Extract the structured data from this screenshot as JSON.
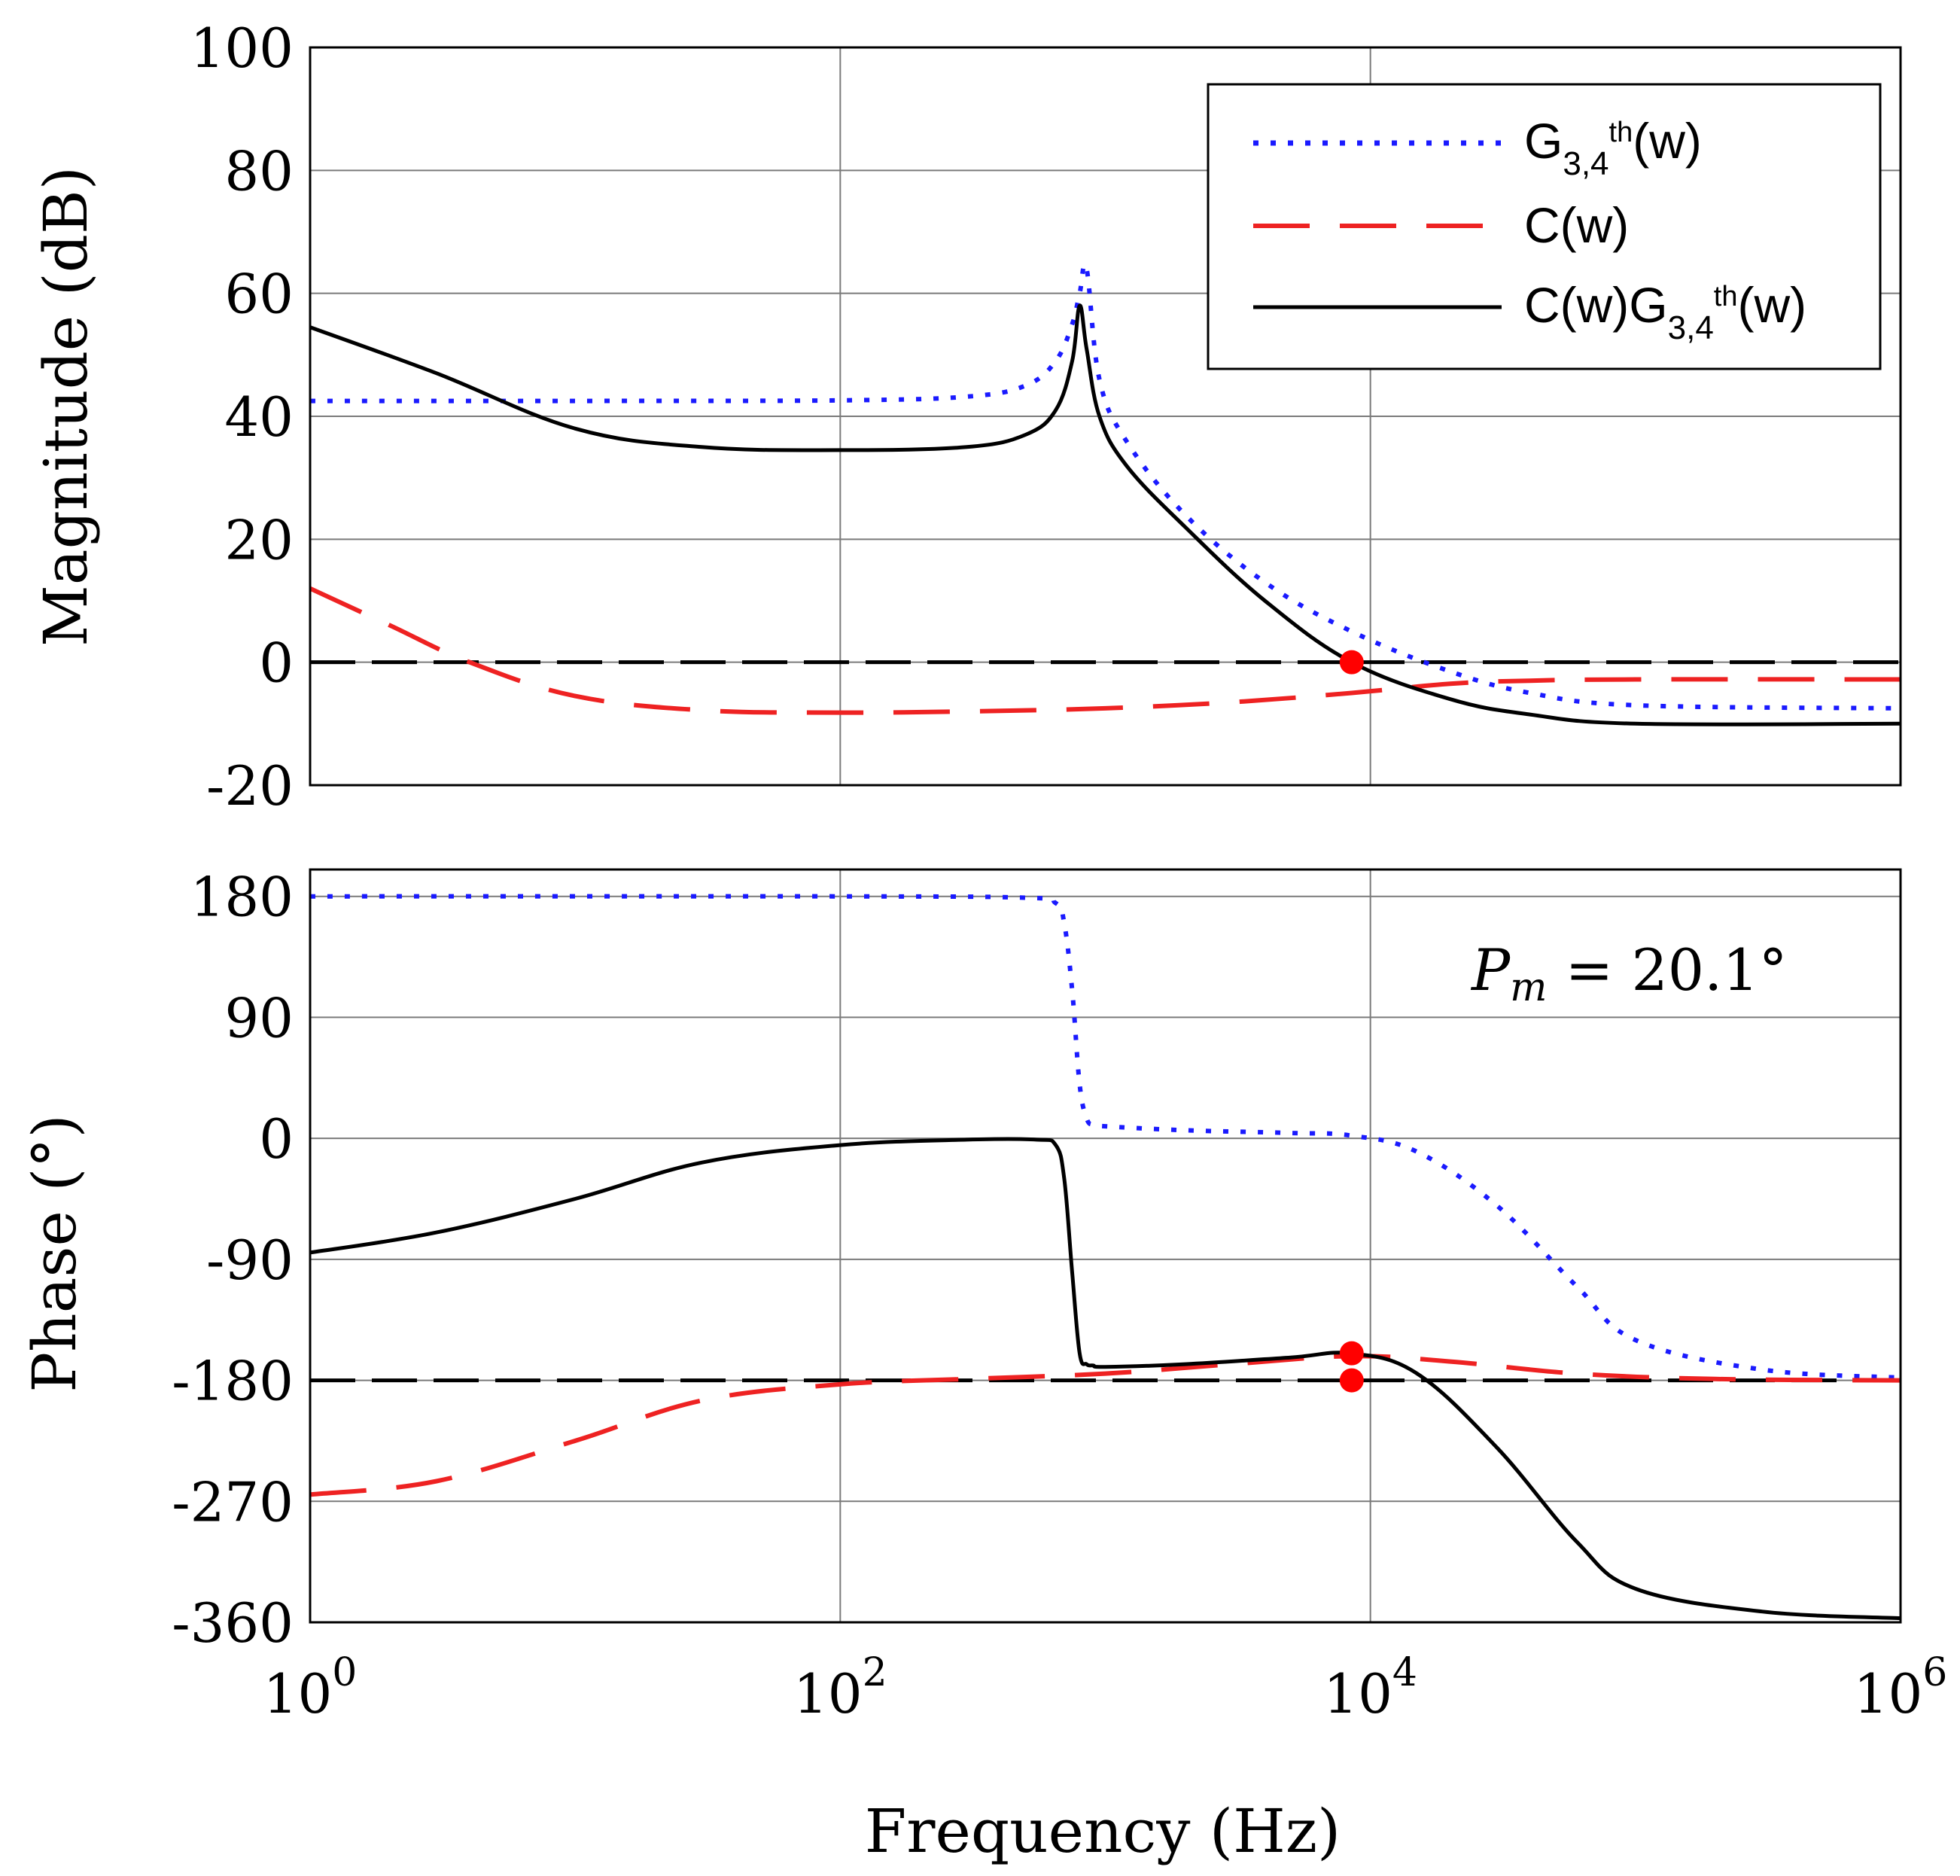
{
  "chart_data": [
    {
      "type": "line",
      "id": "magnitude",
      "ylabel": "Magnitude (dB)",
      "xscale": "log",
      "xlim": [
        1,
        1000000
      ],
      "ylim": [
        -20,
        100
      ],
      "yticks": [
        100,
        80,
        60,
        40,
        20,
        0,
        -20
      ],
      "ytick_labels": [
        "100",
        "80",
        "60",
        "40",
        "20",
        "0",
        "-20"
      ],
      "grid": true,
      "legend": {
        "position": "top-right",
        "entries": [
          {
            "series": "G34",
            "base": "G",
            "sub": "3,4",
            "sup": "th",
            "suffix": "(w)"
          },
          {
            "series": "C",
            "text": "C(w)"
          },
          {
            "series": "CG",
            "prefix": "C(w)G",
            "sub": "3,4",
            "sup": "th",
            "suffix": "(w)"
          }
        ]
      },
      "reference_line": {
        "y": 0,
        "style": "dashed",
        "color": "#000000"
      },
      "markers": [
        {
          "x": 8500,
          "y": 0,
          "color": "#ff0000"
        }
      ],
      "series": [
        {
          "name": "G34",
          "color": "#1a1aff",
          "style": "dotted",
          "x": [
            1,
            10,
            100,
            300,
            500,
            650,
            750,
            800,
            850,
            950,
            1200,
            2000,
            4000,
            8500,
            20000,
            40000,
            100000,
            1000000
          ],
          "y": [
            42.5,
            42.5,
            42.6,
            43.2,
            45,
            49,
            55,
            60,
            64,
            46,
            36,
            24,
            13,
            5,
            -1.5,
            -5,
            -7,
            -7.5
          ]
        },
        {
          "name": "C",
          "color": "#ee2222",
          "style": "dashed",
          "x": [
            1,
            2,
            4,
            10,
            30,
            100,
            300,
            1000,
            3000,
            8500,
            20000,
            40000,
            100000,
            1000000
          ],
          "y": [
            12,
            6,
            0,
            -5.5,
            -7.8,
            -8.2,
            -8,
            -7.5,
            -6.5,
            -5,
            -3.5,
            -3,
            -2.8,
            -2.8
          ]
        },
        {
          "name": "CG",
          "color": "#000000",
          "style": "solid",
          "x": [
            1,
            3,
            10,
            30,
            100,
            300,
            500,
            650,
            750,
            800,
            850,
            950,
            1200,
            2000,
            4000,
            8500,
            20000,
            40000,
            100000,
            1000000
          ],
          "y": [
            54.5,
            47,
            38,
            35,
            34.5,
            35,
            37,
            41,
            49,
            58,
            51,
            40,
            32,
            22,
            10,
            0,
            -6,
            -8.5,
            -10,
            -10
          ]
        }
      ]
    },
    {
      "type": "line",
      "id": "phase",
      "ylabel": "Phase (°)",
      "xlabel": "Frequency (Hz)",
      "xscale": "log",
      "xlim": [
        1,
        1000000
      ],
      "ylim": [
        -360,
        200
      ],
      "yticks": [
        180,
        90,
        0,
        -90,
        -180,
        -270,
        -360
      ],
      "ytick_labels": [
        "180",
        "90",
        "0",
        "-90",
        "-180",
        "-270",
        "-360"
      ],
      "xtick_labels": [
        {
          "base": "10",
          "exp": "0"
        },
        {
          "base": "10",
          "exp": "2"
        },
        {
          "base": "10",
          "exp": "4"
        },
        {
          "base": "10",
          "exp": "6"
        }
      ],
      "grid": true,
      "annotation": {
        "symbol": "P",
        "subscript": "m",
        "text": " = 20.1°",
        "position": "top-right"
      },
      "reference_line": {
        "y": -180,
        "style": "dashed",
        "color": "#000000"
      },
      "markers": [
        {
          "x": 8500,
          "y": -159.9,
          "color": "#ff0000"
        },
        {
          "x": 8500,
          "y": -180,
          "color": "#ff0000"
        }
      ],
      "series": [
        {
          "name": "G34",
          "color": "#1a1aff",
          "style": "dotted",
          "x": [
            1,
            100,
            500,
            650,
            700,
            750,
            800,
            850,
            900,
            1000,
            2000,
            5000,
            8500,
            15000,
            30000,
            60000,
            100000,
            300000,
            1000000
          ],
          "y": [
            180,
            180,
            179,
            175,
            160,
            110,
            40,
            15,
            10,
            9,
            6,
            4,
            2,
            -10,
            -50,
            -110,
            -150,
            -172,
            -178
          ]
        },
        {
          "name": "C",
          "color": "#ee2222",
          "style": "dashed",
          "x": [
            1,
            3,
            10,
            30,
            100,
            300,
            1000,
            3000,
            8500,
            20000,
            60000,
            200000,
            1000000
          ],
          "y": [
            -265,
            -255,
            -225,
            -195,
            -183,
            -179,
            -175,
            -168,
            -162,
            -166,
            -175,
            -179,
            -180
          ]
        },
        {
          "name": "CG",
          "color": "#000000",
          "style": "solid",
          "x": [
            1,
            3,
            10,
            30,
            100,
            300,
            550,
            650,
            700,
            750,
            800,
            850,
            900,
            1000,
            2000,
            5000,
            8500,
            15000,
            30000,
            60000,
            100000,
            300000,
            1000000
          ],
          "y": [
            -85,
            -70,
            -45,
            -18,
            -5,
            -1,
            -1,
            -5,
            -30,
            -100,
            -160,
            -168,
            -169,
            -170,
            -168,
            -163,
            -160,
            -175,
            -230,
            -300,
            -335,
            -352,
            -357
          ]
        }
      ]
    }
  ]
}
